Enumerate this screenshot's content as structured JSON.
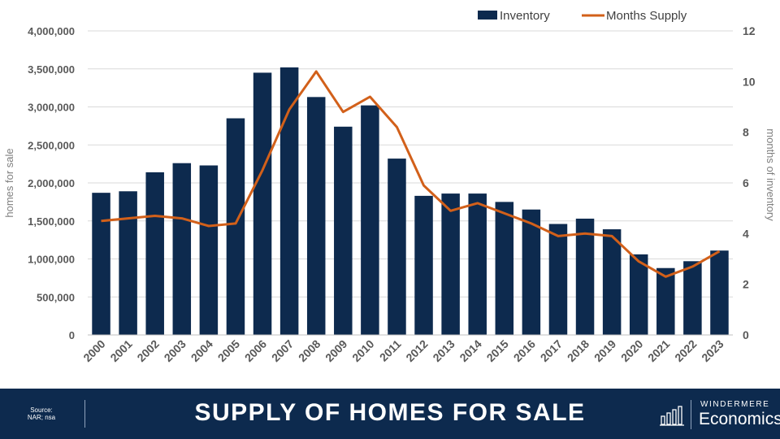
{
  "chart_data": {
    "type": "bar+line",
    "categories": [
      "2000",
      "2001",
      "2002",
      "2003",
      "2004",
      "2005",
      "2006",
      "2007",
      "2008",
      "2009",
      "2010",
      "2011",
      "2012",
      "2013",
      "2014",
      "2015",
      "2016",
      "2017",
      "2018",
      "2019",
      "2020",
      "2021",
      "2022",
      "2023"
    ],
    "series": [
      {
        "name": "Inventory",
        "type": "bar",
        "axis": "left",
        "color": "#0d2a4e",
        "values": [
          1870000,
          1890000,
          2140000,
          2260000,
          2230000,
          2850000,
          3450000,
          3520000,
          3130000,
          2740000,
          3020000,
          2320000,
          1830000,
          1860000,
          1860000,
          1750000,
          1650000,
          1460000,
          1530000,
          1390000,
          1060000,
          880000,
          970000,
          1110000
        ]
      },
      {
        "name": "Months Supply",
        "type": "line",
        "axis": "right",
        "color": "#d2601a",
        "values": [
          4.5,
          4.6,
          4.7,
          4.6,
          4.3,
          4.4,
          6.5,
          8.9,
          10.4,
          8.8,
          9.4,
          8.2,
          5.9,
          4.9,
          5.2,
          4.8,
          4.4,
          3.9,
          4.0,
          3.9,
          2.9,
          2.3,
          2.7,
          3.3
        ]
      }
    ],
    "y_left": {
      "label": "homes for sale",
      "range": [
        0,
        4000000
      ],
      "ticks": [
        "0",
        "500,000",
        "1,000,000",
        "1,500,000",
        "2,000,000",
        "2,500,000",
        "3,000,000",
        "3,500,000",
        "4,000,000"
      ]
    },
    "y_right": {
      "label": "months of inventory",
      "range": [
        0,
        12
      ],
      "ticks": [
        "0",
        "2",
        "4",
        "6",
        "8",
        "10",
        "12"
      ]
    },
    "legend": {
      "position": "top-right",
      "items": [
        "Inventory",
        "Months Supply"
      ]
    },
    "grid": true
  },
  "footer": {
    "title": "SUPPLY OF HOMES FOR SALE",
    "source_label": "Source:",
    "source_text": "NAR; nsa",
    "brand_top": "WINDERMERE",
    "brand_bottom": "Economics"
  },
  "colors": {
    "bar": "#0d2a4e",
    "line": "#d2601a",
    "footer_bg": "#0d2a4e"
  }
}
